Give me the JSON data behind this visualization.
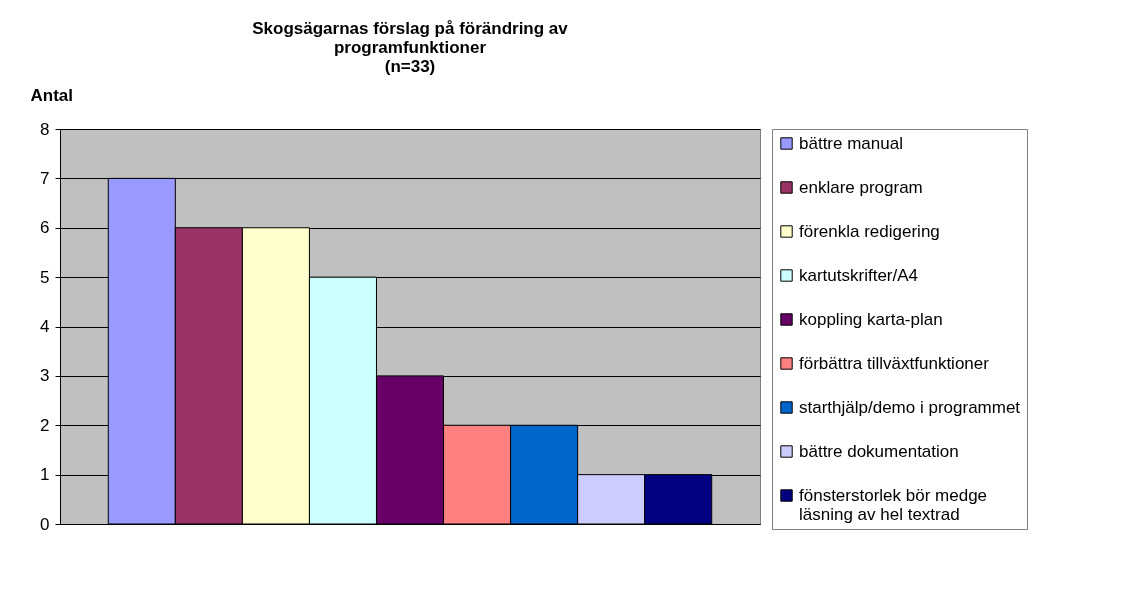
{
  "chart_data": {
    "type": "bar",
    "title": "Skogsägarnas förslag på förändring av programfunktioner",
    "subtitle": "(n=33)",
    "ylabel": "Antal",
    "categories": [
      null
    ],
    "series": [
      {
        "name": "bättre manual",
        "color": "#9999ff",
        "values": [
          7
        ]
      },
      {
        "name": "enklare program",
        "color": "#993366",
        "values": [
          6
        ]
      },
      {
        "name": "förenkla redigering",
        "color": "#ffffcc",
        "values": [
          6
        ]
      },
      {
        "name": "kartutskrifter/A4",
        "color": "#ccffff",
        "values": [
          5
        ]
      },
      {
        "name": "koppling karta-plan",
        "color": "#660066",
        "values": [
          3
        ]
      },
      {
        "name": "förbättra tillväxtfunktioner",
        "color": "#ff8080",
        "values": [
          2
        ]
      },
      {
        "name": "starthjälp/demo i programmet",
        "color": "#0066cc",
        "values": [
          2
        ]
      },
      {
        "name": "bättre dokumentation",
        "color": "#ccccff",
        "values": [
          1
        ]
      },
      {
        "name": "fönsterstorlek bör medge läsning av hel textrad",
        "color": "#000080",
        "values": [
          1
        ]
      }
    ],
    "ylim": [
      0,
      8
    ],
    "yticks": [
      0,
      1,
      2,
      3,
      4,
      5,
      6,
      7,
      8
    ],
    "grid": "y",
    "legend": "right"
  }
}
